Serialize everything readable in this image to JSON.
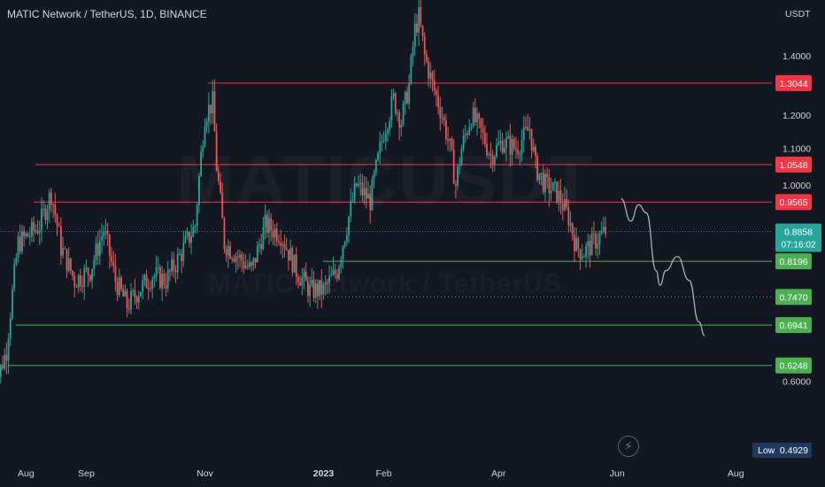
{
  "title": "MATIC Network / TetherUS, 1D, BINANCE",
  "watermark": "MATICUSDT",
  "watermark_sub": "MATIC Network / TetherUS",
  "colors": {
    "background": "#131722",
    "up": "#26a69a",
    "down": "#ef5350",
    "resistance": "#f23645",
    "support": "#4caf50",
    "current": "#26a69a",
    "axis_text": "#d1d4dc",
    "low_label": "#1e3a5f",
    "projection": "#d1d4dc"
  },
  "icons": {
    "replay": "lightning-icon"
  },
  "chart_data": {
    "type": "candlestick",
    "symbol": "MATIC Network / TetherUS",
    "interval": "1D",
    "exchange": "BINANCE",
    "y_unit": "USDT",
    "y_scale": "log",
    "ylim": [
      0.49,
      1.62
    ],
    "y_ticks": [
      1.4,
      1.2,
      1.1,
      1.0,
      0.6
    ],
    "y_tick_labels": [
      "1.4000",
      "1.2000",
      "1.1000",
      "1.0000",
      "0.6000"
    ],
    "x_range": [
      "2022-07-15",
      "2023-08-15"
    ],
    "x_ticks": [
      {
        "date": "2022-08-01",
        "label": "Aug"
      },
      {
        "date": "2022-09-01",
        "label": "Sep"
      },
      {
        "date": "2022-11-01",
        "label": "Nov"
      },
      {
        "date": "2023-01-01",
        "label": "2023"
      },
      {
        "date": "2023-02-01",
        "label": "Feb"
      },
      {
        "date": "2023-04-01",
        "label": "Apr"
      },
      {
        "date": "2023-06-01",
        "label": "Jun"
      },
      {
        "date": "2023-08-01",
        "label": "Aug"
      }
    ],
    "price_path": [
      [
        "2022-07-15",
        0.58
      ],
      [
        "2022-07-22",
        0.65
      ],
      [
        "2022-07-28",
        0.86
      ],
      [
        "2022-08-03",
        0.88
      ],
      [
        "2022-08-08",
        0.9
      ],
      [
        "2022-08-14",
        0.98
      ],
      [
        "2022-08-19",
        0.85
      ],
      [
        "2022-08-26",
        0.78
      ],
      [
        "2022-09-03",
        0.8
      ],
      [
        "2022-09-10",
        0.89
      ],
      [
        "2022-09-16",
        0.78
      ],
      [
        "2022-09-22",
        0.73
      ],
      [
        "2022-09-28",
        0.76
      ],
      [
        "2022-10-05",
        0.79
      ],
      [
        "2022-10-12",
        0.78
      ],
      [
        "2022-10-19",
        0.83
      ],
      [
        "2022-10-27",
        0.9
      ],
      [
        "2022-11-01",
        1.2
      ],
      [
        "2022-11-05",
        1.24
      ],
      [
        "2022-11-07",
        1.05
      ],
      [
        "2022-11-11",
        0.86
      ],
      [
        "2022-11-18",
        0.83
      ],
      [
        "2022-11-25",
        0.8
      ],
      [
        "2022-12-02",
        0.9
      ],
      [
        "2022-12-10",
        0.88
      ],
      [
        "2022-12-18",
        0.8
      ],
      [
        "2022-12-25",
        0.76
      ],
      [
        "2023-01-01",
        0.76
      ],
      [
        "2023-01-08",
        0.8
      ],
      [
        "2023-01-12",
        0.88
      ],
      [
        "2023-01-18",
        1.0
      ],
      [
        "2023-01-25",
        0.96
      ],
      [
        "2023-02-01",
        1.15
      ],
      [
        "2023-02-06",
        1.25
      ],
      [
        "2023-02-10",
        1.18
      ],
      [
        "2023-02-14",
        1.3
      ],
      [
        "2023-02-17",
        1.5
      ],
      [
        "2023-02-19",
        1.55
      ],
      [
        "2023-02-22",
        1.4
      ],
      [
        "2023-02-26",
        1.3
      ],
      [
        "2023-03-03",
        1.2
      ],
      [
        "2023-03-07",
        1.1
      ],
      [
        "2023-03-10",
        1.0
      ],
      [
        "2023-03-13",
        1.1
      ],
      [
        "2023-03-18",
        1.2
      ],
      [
        "2023-03-23",
        1.15
      ],
      [
        "2023-03-28",
        1.08
      ],
      [
        "2023-04-03",
        1.12
      ],
      [
        "2023-04-10",
        1.1
      ],
      [
        "2023-04-17",
        1.16
      ],
      [
        "2023-04-20",
        1.05
      ],
      [
        "2023-04-25",
        1.0
      ],
      [
        "2023-05-01",
        0.98
      ],
      [
        "2023-05-07",
        0.92
      ],
      [
        "2023-05-11",
        0.85
      ],
      [
        "2023-05-15",
        0.84
      ],
      [
        "2023-05-22",
        0.87
      ],
      [
        "2023-05-26",
        0.8858
      ]
    ],
    "resistance_levels": [
      1.3044,
      1.0548,
      0.9565
    ],
    "support_levels": [
      0.8196,
      0.747,
      0.6941,
      0.6248
    ],
    "dotted_levels": [
      0.747
    ],
    "current_price": 0.8858,
    "countdown": "07:16:02",
    "low": 0.4929,
    "projection_path": [
      [
        "2023-06-03",
        0.965
      ],
      [
        "2023-06-08",
        0.91
      ],
      [
        "2023-06-12",
        0.95
      ],
      [
        "2023-06-16",
        0.93
      ],
      [
        "2023-06-21",
        0.8
      ],
      [
        "2023-06-23",
        0.77
      ],
      [
        "2023-06-26",
        0.8
      ],
      [
        "2023-07-02",
        0.83
      ],
      [
        "2023-07-08",
        0.78
      ],
      [
        "2023-07-13",
        0.7
      ],
      [
        "2023-07-16",
        0.675
      ]
    ]
  },
  "price_scale": {
    "unit": "USDT",
    "labels": {
      "r1": "1.3044",
      "r2": "1.0548",
      "r3": "0.9565",
      "current": "0.8858",
      "countdown": "07:16:02",
      "s1": "0.8196",
      "s2": "0.7470",
      "s3": "0.6941",
      "s4": "0.6248"
    },
    "low_title": "Low",
    "low_value": "0.4929"
  }
}
